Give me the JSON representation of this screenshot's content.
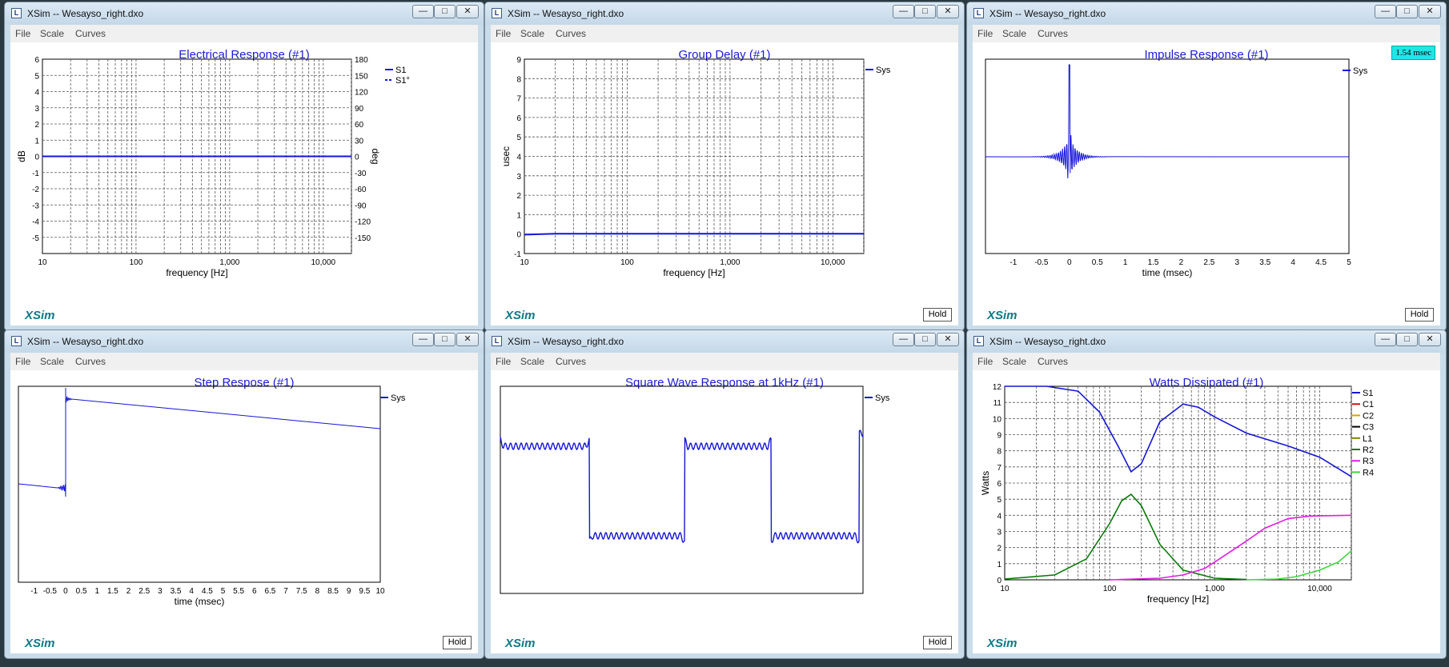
{
  "menus": [
    "File",
    "Scale",
    "Curves"
  ],
  "brand": "XSim",
  "hold_label": "Hold",
  "window_buttons": {
    "minimize": "—",
    "maximize": "□",
    "close": "✕"
  },
  "app_icon_glyph": "L",
  "colors": {
    "curve_blue": "#1515d8",
    "title_blue": "#1c1cd0",
    "green": "#0a7a0a",
    "magenta": "#e01ee0",
    "lime": "#3ad83a"
  },
  "windows": [
    {
      "title": "XSim -- Wesayso_right.dxo",
      "plot_title": "Electrical Response (#1)",
      "hold": false,
      "chart_data": {
        "type": "line",
        "xscale": "log",
        "xlim": [
          10,
          20000
        ],
        "ylim": [
          -6,
          6
        ],
        "y2lim": [
          -180,
          180
        ],
        "xlabel": "frequency [Hz]",
        "ylabel": "dB",
        "y2label": "deg",
        "yticks": [
          "6",
          "5",
          "4",
          "3",
          "2",
          "1",
          "0",
          "-1",
          "-2",
          "-3",
          "-4",
          "-5"
        ],
        "y2ticks": [
          "180",
          "150",
          "120",
          "90",
          "60",
          "30",
          "0",
          "-30",
          "-60",
          "-90",
          "-120",
          "-150"
        ],
        "xticks": [
          "10",
          "100",
          "1,000",
          "10,000"
        ],
        "legend": [
          "S1",
          "S1°"
        ],
        "series": [
          {
            "name": "S1",
            "x": [
              10,
              20000
            ],
            "y": [
              0,
              0
            ]
          }
        ]
      }
    },
    {
      "title": "XSim -- Wesayso_right.dxo",
      "plot_title": "Group Delay (#1)",
      "hold": true,
      "chart_data": {
        "type": "line",
        "xscale": "log",
        "xlim": [
          10,
          20000
        ],
        "ylim": [
          -1,
          9
        ],
        "xlabel": "frequency [Hz]",
        "ylabel": "usec",
        "yticks": [
          "9",
          "8",
          "7",
          "6",
          "5",
          "4",
          "3",
          "2",
          "1",
          "0",
          "-1"
        ],
        "xticks": [
          "10",
          "100",
          "1,000",
          "10,000"
        ],
        "legend": [
          "Sys"
        ],
        "series": [
          {
            "name": "Sys",
            "x": [
              10,
              20,
              20000
            ],
            "y": [
              -0.03,
              0.02,
              0.02
            ]
          }
        ]
      }
    },
    {
      "title": "XSim -- Wesayso_right.dxo",
      "plot_title": "Impulse Response (#1)",
      "hold": true,
      "badge": "1.54 msec",
      "chart_data": {
        "type": "line",
        "xlim": [
          -1.5,
          5
        ],
        "xlabel": "time (msec)",
        "xticks": [
          "-1",
          "-0.5",
          "0",
          "0.5",
          "1",
          "1.5",
          "2",
          "2.5",
          "3",
          "3.5",
          "4",
          "4.5",
          "5"
        ],
        "legend": [
          "Sys"
        ],
        "series": [
          {
            "name": "Sys",
            "peak_time": 0
          }
        ]
      }
    },
    {
      "title": "XSim -- Wesayso_right.dxo",
      "plot_title": "Step Respose (#1)",
      "hold": true,
      "chart_data": {
        "type": "line",
        "xlim": [
          -1.5,
          10
        ],
        "xlabel": "time (msec)",
        "xticks": [
          "-1",
          "-0.5",
          "0",
          "0.5",
          "1",
          "1.5",
          "2",
          "2.5",
          "3",
          "3.5",
          "4",
          "4.5",
          "5",
          "5.5",
          "6",
          "6.5",
          "7",
          "7.5",
          "8",
          "8.5",
          "9",
          "9.5",
          "10"
        ],
        "legend": [
          "Sys"
        ],
        "series": [
          {
            "name": "Sys",
            "step_time": 0
          }
        ]
      }
    },
    {
      "title": "XSim -- Wesayso_right.dxo",
      "plot_title": "Square Wave Response at 1kHz (#1)",
      "hold": true,
      "chart_data": {
        "type": "line",
        "frequency": "1kHz",
        "legend": [
          "Sys"
        ],
        "series": [
          {
            "name": "Sys"
          }
        ]
      }
    },
    {
      "title": "XSim -- Wesayso_right.dxo",
      "plot_title": "Watts Dissipated (#1)",
      "hold": false,
      "chart_data": {
        "type": "line",
        "xscale": "log",
        "xlim": [
          10,
          20000
        ],
        "ylim": [
          0,
          12
        ],
        "xlabel": "frequency [Hz]",
        "ylabel": "Watts",
        "yticks": [
          "12",
          "11",
          "10",
          "9",
          "8",
          "7",
          "6",
          "5",
          "4",
          "3",
          "2",
          "1",
          "0"
        ],
        "xticks": [
          "10",
          "100",
          "1,000",
          "10,000"
        ],
        "legend": [
          "S1",
          "C1",
          "C2",
          "C3",
          "L1",
          "R2",
          "R3",
          "R4"
        ],
        "legend_colors": [
          "#1515d8",
          "#d01010",
          "#e0a000",
          "#000000",
          "#808000",
          "#0a7a0a",
          "#e01ee0",
          "#3ad83a"
        ],
        "series": [
          {
            "name": "S1",
            "x": [
              10,
              25,
              50,
              80,
              120,
              160,
              200,
              300,
              500,
              700,
              1000,
              2000,
              5000,
              10000,
              20000
            ],
            "y": [
              12.8,
              12.3,
              11.7,
              10.4,
              8.3,
              6.7,
              7.2,
              9.8,
              10.9,
              10.7,
              10.1,
              9.1,
              8.3,
              7.6,
              6.4
            ]
          },
          {
            "name": "R2",
            "x": [
              10,
              30,
              60,
              100,
              130,
              160,
              200,
              300,
              500,
              1000,
              2000
            ],
            "y": [
              0.05,
              0.3,
              1.3,
              3.5,
              4.9,
              5.3,
              4.6,
              2.2,
              0.6,
              0.1,
              0.02
            ]
          },
          {
            "name": "R3",
            "x": [
              100,
              300,
              500,
              800,
              1000,
              2000,
              3000,
              5000,
              8000,
              20000
            ],
            "y": [
              0,
              0.1,
              0.3,
              0.7,
              1.1,
              2.4,
              3.2,
              3.8,
              3.95,
              4
            ]
          },
          {
            "name": "R4",
            "x": [
              2000,
              4000,
              6000,
              10000,
              15000,
              20000
            ],
            "y": [
              0,
              0.05,
              0.2,
              0.6,
              1.1,
              1.8
            ]
          }
        ]
      }
    }
  ]
}
